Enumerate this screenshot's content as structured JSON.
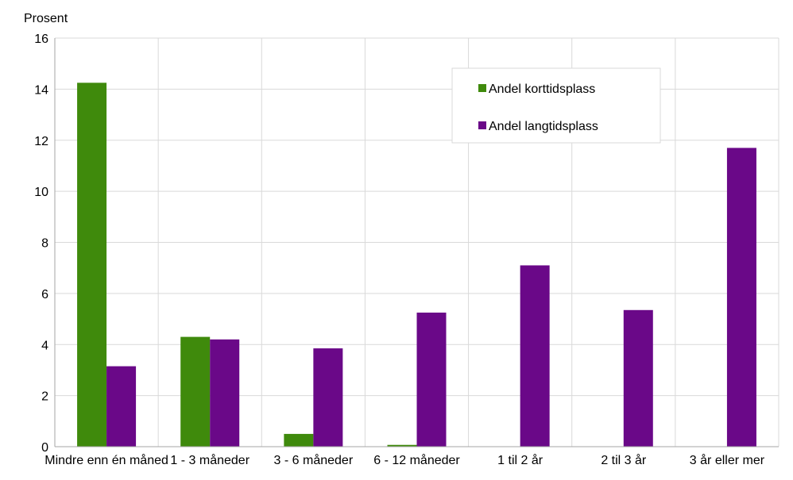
{
  "chart_data": {
    "type": "bar",
    "ylabel": "Prosent",
    "ylim": [
      0,
      16
    ],
    "yticks": [
      "0",
      "2",
      "4",
      "6",
      "8",
      "10",
      "12",
      "14",
      "16"
    ],
    "categories": [
      "Mindre enn én måned",
      "1 - 3 måneder",
      "3 - 6 måneder",
      "6 - 12 måneder",
      "1 til 2 år",
      "2 til 3 år",
      "3 år eller mer"
    ],
    "series": [
      {
        "name": "Andel korttidsplass",
        "color": "#3f8a0c",
        "values": [
          14.25,
          4.3,
          0.5,
          0.07,
          0,
          0,
          0
        ]
      },
      {
        "name": "Andel langtidsplass",
        "color": "#6a0888",
        "values": [
          3.15,
          4.2,
          3.85,
          5.25,
          7.1,
          5.35,
          11.7
        ]
      }
    ],
    "grid": true,
    "legend_position": "top-right"
  }
}
